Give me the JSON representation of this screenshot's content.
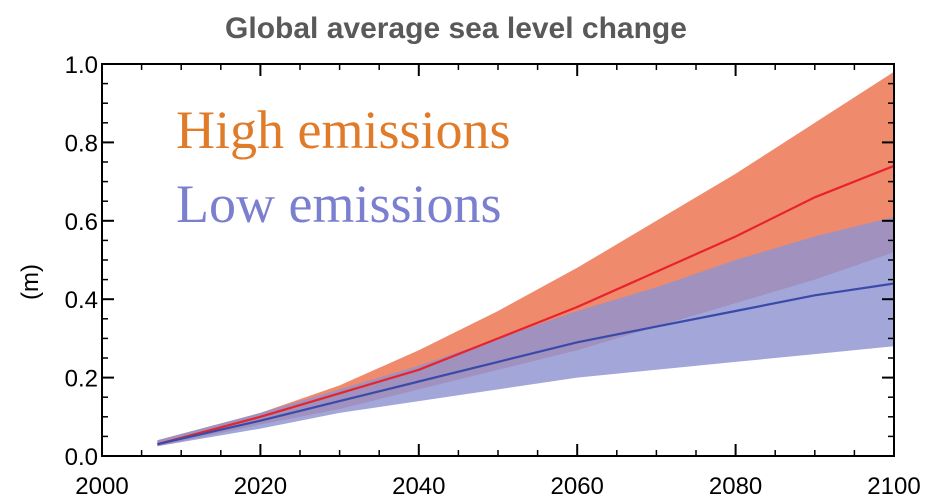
{
  "chart_data": {
    "type": "area",
    "title": "Global average sea level change",
    "xlabel": "",
    "ylabel": "(m)",
    "xlim": [
      2000,
      2100
    ],
    "ylim": [
      0.0,
      1.0
    ],
    "x_ticks": [
      2000,
      2020,
      2040,
      2060,
      2080,
      2100
    ],
    "y_ticks": [
      0.0,
      0.2,
      0.4,
      0.6,
      0.8,
      1.0
    ],
    "y_tick_labels": [
      "0.0",
      "0.2",
      "0.4",
      "0.6",
      "0.8",
      "1.0"
    ],
    "grid": false,
    "legend_placement": "top-left",
    "series": [
      {
        "name": "High emissions",
        "color": "#e07b2a",
        "band_color": "#f08a6c",
        "line_color": "#e8232a",
        "x": [
          2007,
          2020,
          2030,
          2040,
          2050,
          2060,
          2070,
          2080,
          2090,
          2100
        ],
        "mean": [
          0.03,
          0.1,
          0.16,
          0.22,
          0.3,
          0.38,
          0.47,
          0.56,
          0.66,
          0.74
        ],
        "lower": [
          0.025,
          0.08,
          0.12,
          0.17,
          0.22,
          0.27,
          0.33,
          0.39,
          0.45,
          0.52
        ],
        "upper": [
          0.04,
          0.11,
          0.18,
          0.27,
          0.37,
          0.48,
          0.6,
          0.72,
          0.85,
          0.98
        ]
      },
      {
        "name": "Low emissions",
        "color": "#7b7fcf",
        "band_color": "#8d93d1",
        "line_color": "#3a4aa8",
        "x": [
          2007,
          2020,
          2030,
          2040,
          2050,
          2060,
          2070,
          2080,
          2090,
          2100
        ],
        "mean": [
          0.03,
          0.09,
          0.14,
          0.19,
          0.24,
          0.29,
          0.33,
          0.37,
          0.41,
          0.44
        ],
        "lower": [
          0.025,
          0.07,
          0.11,
          0.14,
          0.17,
          0.2,
          0.22,
          0.24,
          0.26,
          0.28
        ],
        "upper": [
          0.04,
          0.11,
          0.17,
          0.23,
          0.3,
          0.37,
          0.43,
          0.5,
          0.56,
          0.61
        ]
      }
    ]
  }
}
